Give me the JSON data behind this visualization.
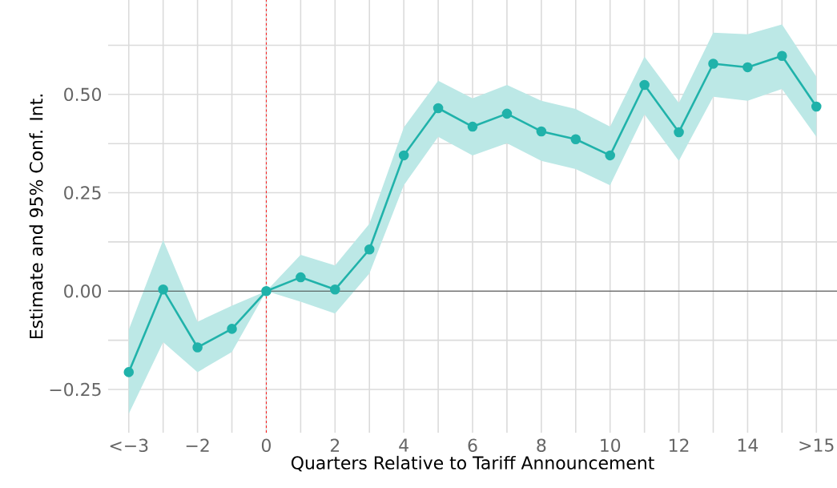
{
  "chart_data": {
    "type": "line",
    "xlabel": "Quarters Relative to Tariff Announcement",
    "ylabel": "Estimate and 95% Conf. Int.",
    "xlim": [
      -4.6,
      16.6
    ],
    "ylim": [
      -0.36,
      0.74
    ],
    "xticks": [
      {
        "value": -4,
        "label": "<−3"
      },
      {
        "value": -3,
        "label": null
      },
      {
        "value": -2,
        "label": "−2"
      },
      {
        "value": -1,
        "label": null
      },
      0,
      {
        "value": 1,
        "label": null
      },
      2,
      {
        "value": 3,
        "label": null
      },
      4,
      {
        "value": 5,
        "label": null
      },
      6,
      {
        "value": 7,
        "label": null
      },
      8,
      {
        "value": 9,
        "label": null
      },
      10,
      {
        "value": 11,
        "label": null
      },
      12,
      {
        "value": 13,
        "label": null
      },
      14,
      {
        "value": 15,
        "label": null
      },
      {
        "value": 16,
        "label": ">15"
      }
    ],
    "yticks": [
      {
        "value": -0.25,
        "label": "−0.25"
      },
      {
        "value": -0.125,
        "label": null
      },
      {
        "value": 0,
        "label": "0.00"
      },
      {
        "value": 0.125,
        "label": null
      },
      {
        "value": 0.25,
        "label": "0.25"
      },
      {
        "value": 0.375,
        "label": null
      },
      {
        "value": 0.5,
        "label": "0.50"
      },
      {
        "value": 0.625,
        "label": null
      }
    ],
    "grid": true,
    "marker": "circle",
    "line_style": "solid",
    "series": [
      {
        "color": "#20b2aa",
        "x": [
          -4,
          -3,
          -2,
          -1,
          0,
          1,
          2,
          3,
          4,
          5,
          6,
          7,
          8,
          9,
          10,
          11,
          12,
          13,
          14,
          15,
          16
        ],
        "values": [
          -0.206,
          0.004,
          -0.143,
          -0.096,
          0,
          0.035,
          0.004,
          0.106,
          0.345,
          0.465,
          0.418,
          0.451,
          0.406,
          0.386,
          0.345,
          0.524,
          0.404,
          0.578,
          0.569,
          0.598,
          0.469
        ],
        "lower": [
          -0.312,
          -0.13,
          -0.206,
          -0.155,
          0,
          -0.027,
          -0.057,
          0.045,
          0.269,
          0.392,
          0.345,
          0.376,
          0.331,
          0.31,
          0.269,
          0.449,
          0.331,
          0.494,
          0.484,
          0.514,
          0.392
        ],
        "upper": [
          -0.098,
          0.13,
          -0.078,
          -0.037,
          0,
          0.092,
          0.065,
          0.171,
          0.416,
          0.535,
          0.49,
          0.524,
          0.484,
          0.463,
          0.418,
          0.596,
          0.478,
          0.657,
          0.653,
          0.678,
          0.545
        ]
      }
    ],
    "ref_lines": [
      {
        "axis": "y",
        "value": 0,
        "color": "#333333",
        "line_style": "solid"
      },
      {
        "axis": "x",
        "value": 0,
        "color": "#ff0000",
        "line_style": "dashed"
      }
    ]
  }
}
